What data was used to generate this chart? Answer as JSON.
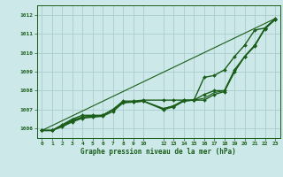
{
  "background_color": "#cce8e8",
  "grid_color": "#aacccc",
  "line_color": "#1a5e1a",
  "title": "Graphe pression niveau de la mer (hPa)",
  "xlim": [
    -0.5,
    23.5
  ],
  "ylim": [
    1005.5,
    1012.5
  ],
  "yticks": [
    1006,
    1007,
    1008,
    1009,
    1010,
    1011,
    1012
  ],
  "xtick_positions": [
    0,
    1,
    2,
    3,
    4,
    5,
    6,
    7,
    8,
    9,
    10,
    12,
    13,
    14,
    15,
    16,
    17,
    18,
    19,
    20,
    21,
    22,
    23
  ],
  "xtick_labels": [
    "0",
    "1",
    "2",
    "3",
    "4",
    "5",
    "6",
    "7",
    "8",
    "9",
    "10",
    "12",
    "13",
    "14",
    "15",
    "16",
    "17",
    "18",
    "19",
    "20",
    "21",
    "22",
    "23"
  ],
  "series": [
    {
      "x": [
        0,
        23
      ],
      "y": [
        1005.9,
        1011.8
      ],
      "marker": false,
      "linewidth": 0.8
    },
    {
      "x": [
        0,
        1,
        2,
        3,
        4,
        5,
        6,
        7,
        8,
        9,
        10,
        12,
        13,
        14,
        15,
        16,
        17,
        18,
        19,
        20,
        21,
        22,
        23
      ],
      "y": [
        1005.9,
        1005.9,
        1006.2,
        1006.5,
        1006.7,
        1006.7,
        1006.7,
        1007.0,
        1007.45,
        1007.45,
        1007.5,
        1007.5,
        1007.5,
        1007.5,
        1007.5,
        1008.7,
        1008.8,
        1009.1,
        1009.8,
        1010.4,
        1011.2,
        1011.3,
        1011.8
      ],
      "marker": true,
      "linewidth": 1.0
    },
    {
      "x": [
        0,
        1,
        2,
        3,
        4,
        5,
        6,
        7,
        8,
        9,
        10,
        12,
        13,
        14,
        15,
        16,
        17,
        18,
        19,
        20,
        21,
        22,
        23
      ],
      "y": [
        1005.9,
        1005.9,
        1006.15,
        1006.4,
        1006.6,
        1006.65,
        1006.7,
        1007.0,
        1007.4,
        1007.4,
        1007.45,
        1007.05,
        1007.2,
        1007.5,
        1007.5,
        1007.8,
        1008.0,
        1008.0,
        1009.1,
        1009.8,
        1010.35,
        1011.3,
        1011.75
      ],
      "marker": true,
      "linewidth": 1.0
    },
    {
      "x": [
        0,
        1,
        2,
        3,
        4,
        5,
        6,
        7,
        8,
        9,
        10,
        12,
        13,
        14,
        15,
        16,
        17,
        18,
        19,
        20,
        21,
        22,
        23
      ],
      "y": [
        1005.9,
        1005.9,
        1006.1,
        1006.35,
        1006.55,
        1006.6,
        1006.65,
        1006.9,
        1007.35,
        1007.4,
        1007.45,
        1007.0,
        1007.15,
        1007.45,
        1007.5,
        1007.5,
        1007.8,
        1007.95,
        1009.0,
        1009.8,
        1010.4,
        1011.25,
        1011.75
      ],
      "marker": true,
      "linewidth": 1.0
    },
    {
      "x": [
        0,
        1,
        2,
        3,
        4,
        5,
        6,
        7,
        8,
        9,
        10,
        12,
        13,
        14,
        15,
        16,
        17,
        18,
        19,
        20,
        21,
        22,
        23
      ],
      "y": [
        1005.9,
        1005.9,
        1006.15,
        1006.45,
        1006.6,
        1006.65,
        1006.7,
        1007.0,
        1007.4,
        1007.4,
        1007.45,
        1007.05,
        1007.2,
        1007.45,
        1007.5,
        1007.6,
        1007.9,
        1008.0,
        1009.0,
        1009.8,
        1010.4,
        1011.3,
        1011.75
      ],
      "marker": false,
      "linewidth": 0.8
    }
  ]
}
